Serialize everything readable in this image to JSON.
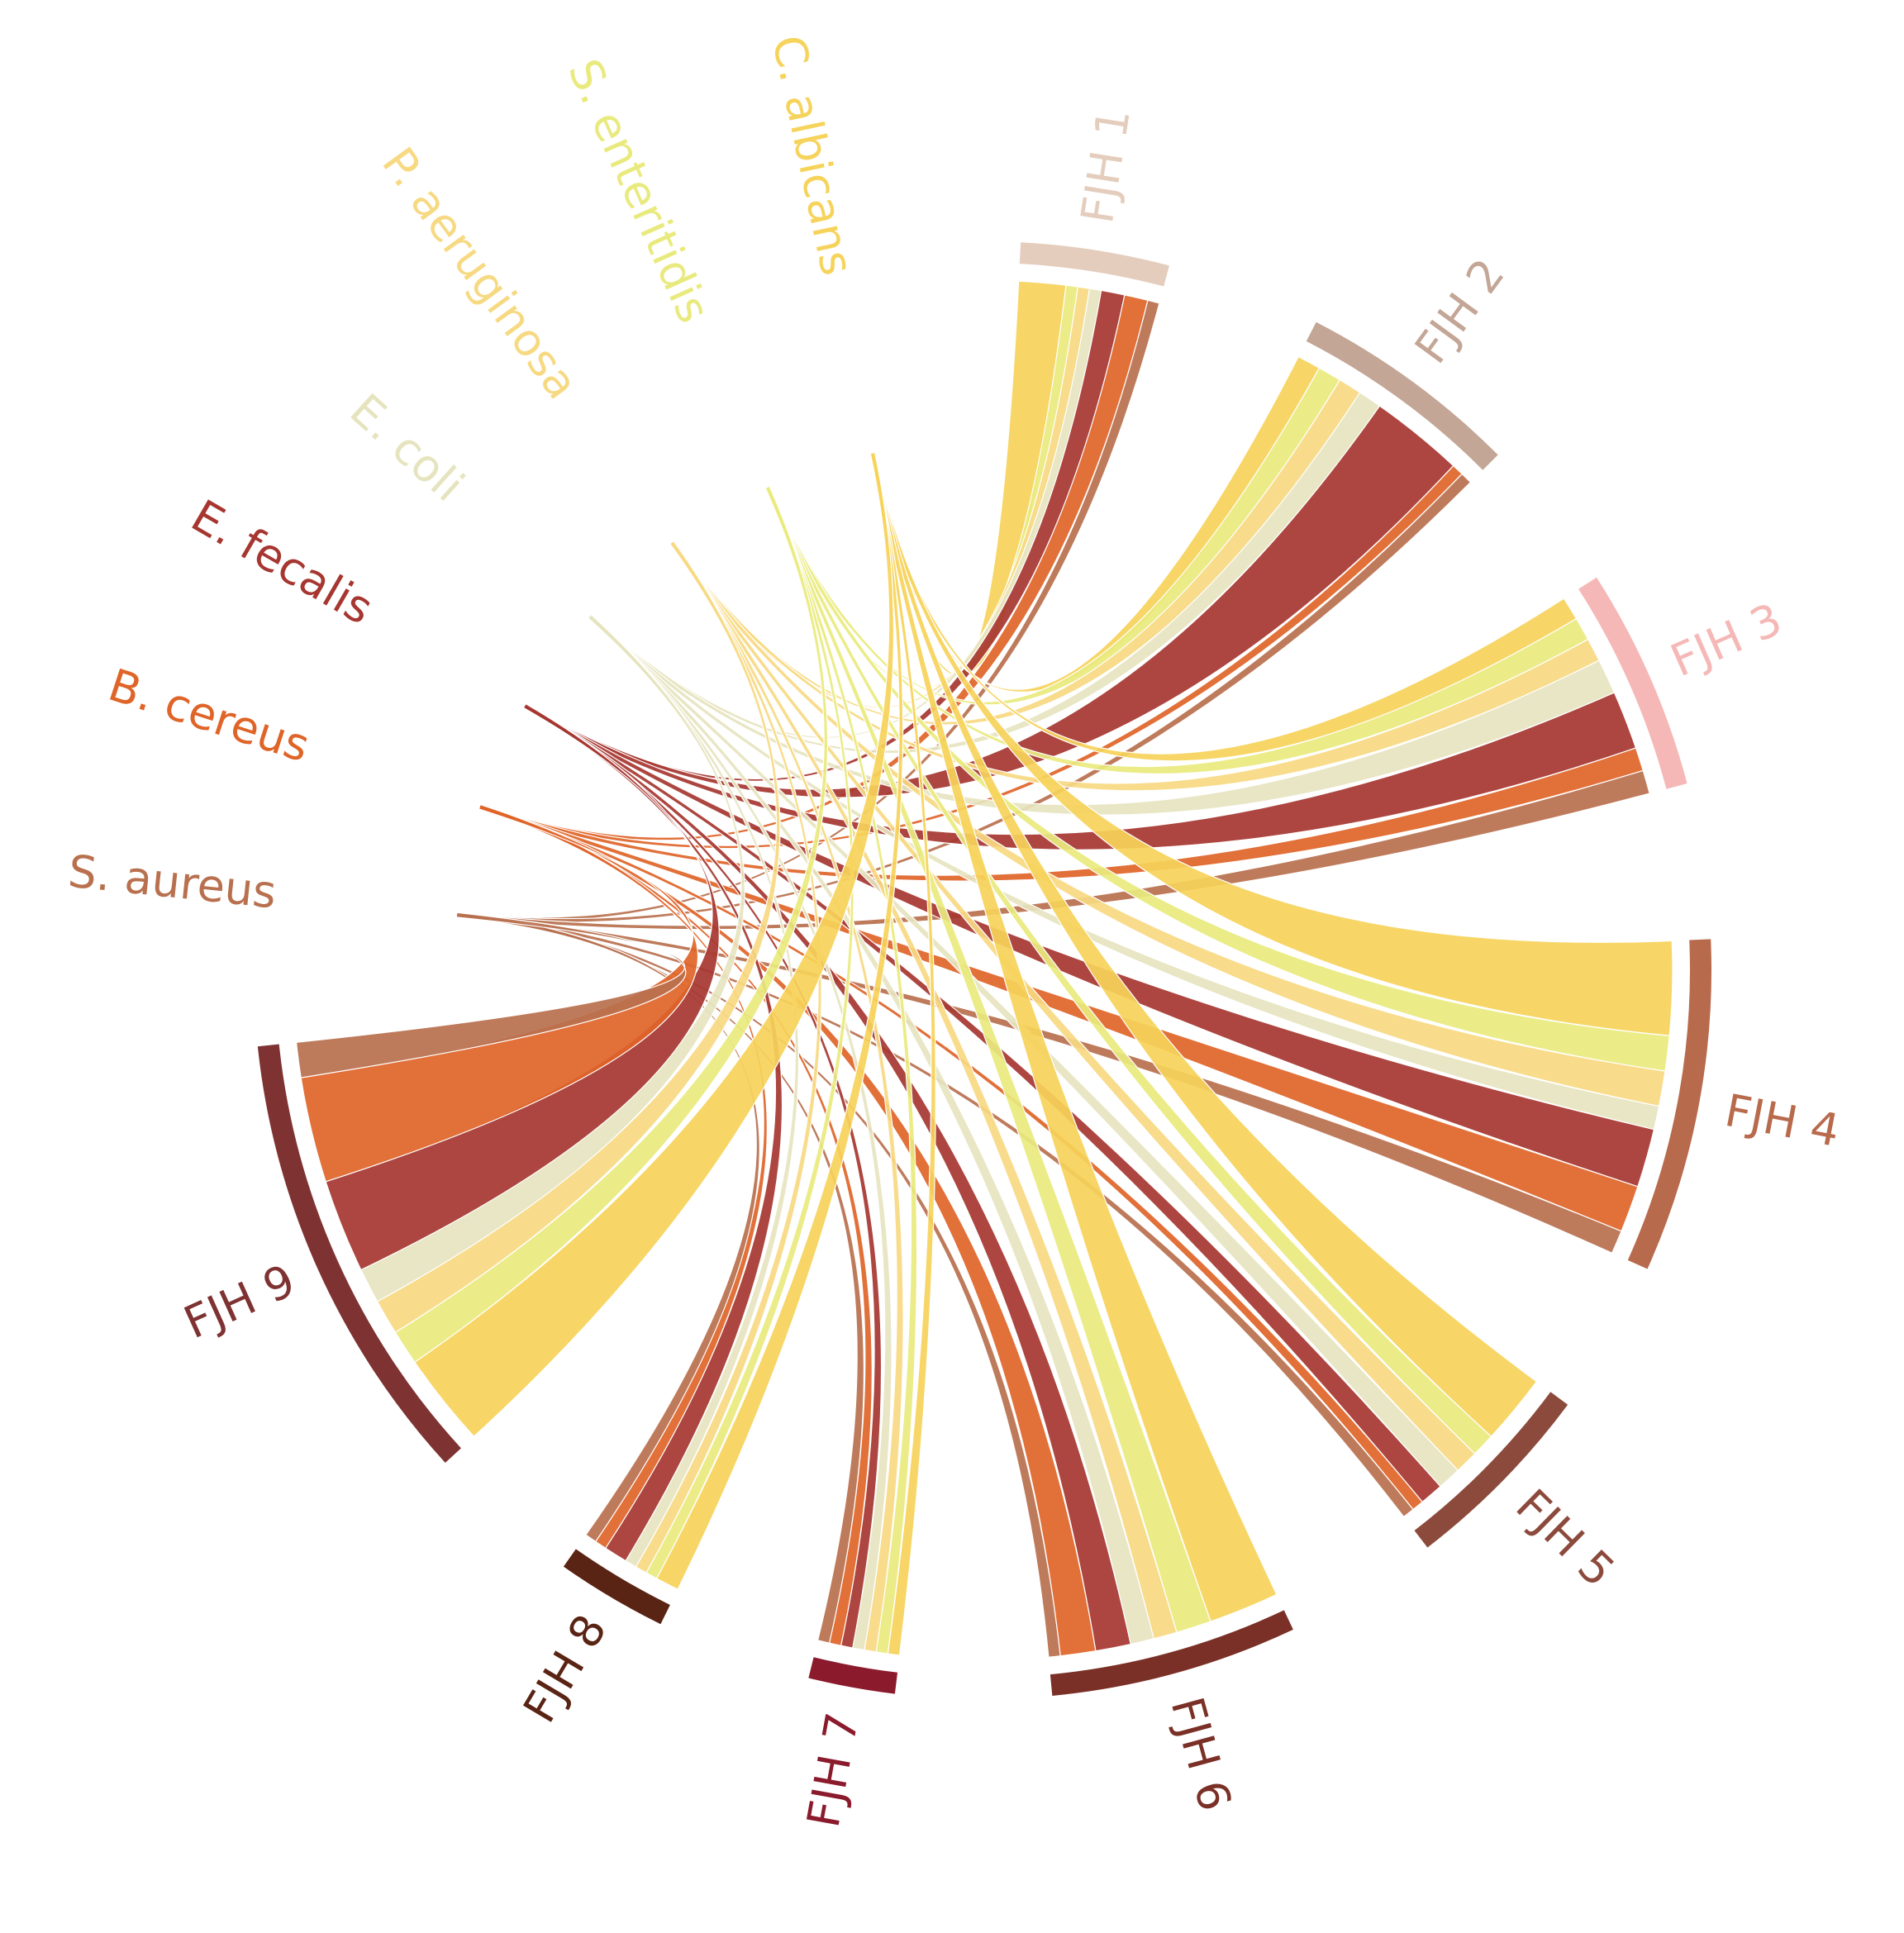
{
  "chart_data": {
    "type": "chord",
    "sources": [
      {
        "name": "FJH 1",
        "color": "#e4cdbd",
        "values": [
          4,
          1,
          1,
          1,
          2,
          2,
          1
        ]
      },
      {
        "name": "FJH 2",
        "color": "#c3a696",
        "values": [
          2,
          2,
          2,
          2,
          8,
          1,
          1
        ]
      },
      {
        "name": "FJH 3",
        "color": "#f5b8b6",
        "values": [
          2,
          2,
          2,
          3,
          5,
          2,
          2
        ]
      },
      {
        "name": "FJH 4",
        "color": "#b86a4c",
        "values": [
          8,
          3,
          3,
          2,
          5,
          4,
          2
        ]
      },
      {
        "name": "FJH 5",
        "color": "#8c4a3c",
        "values": [
          6,
          2,
          2,
          2,
          2,
          1,
          1
        ]
      },
      {
        "name": "FJH 6",
        "color": "#7a3026",
        "values": [
          6,
          3,
          2,
          2,
          3,
          3,
          1
        ]
      },
      {
        "name": "FJH 7",
        "color": "#8a1a2c",
        "values": [
          1,
          1,
          1,
          1,
          1,
          1,
          1
        ]
      },
      {
        "name": "FJH 8",
        "color": "#5a2414",
        "values": [
          2,
          1,
          1,
          1,
          2,
          1,
          1
        ]
      },
      {
        "name": "FJH 9",
        "color": "#7e3232",
        "values": [
          8,
          3,
          3,
          3,
          8,
          9,
          3
        ]
      }
    ],
    "targets": [
      {
        "name": "C. albicans",
        "color": "#f6d35a"
      },
      {
        "name": "S. enteritidis",
        "color": "#e9ea7e"
      },
      {
        "name": "P. aeruginosa",
        "color": "#f7d982"
      },
      {
        "name": "E. coli",
        "color": "#e6e4bf"
      },
      {
        "name": "E. fecalis",
        "color": "#a63630"
      },
      {
        "name": "B. cereus",
        "color": "#df6428"
      },
      {
        "name": "S. aureus",
        "color": "#b8704e"
      }
    ]
  }
}
